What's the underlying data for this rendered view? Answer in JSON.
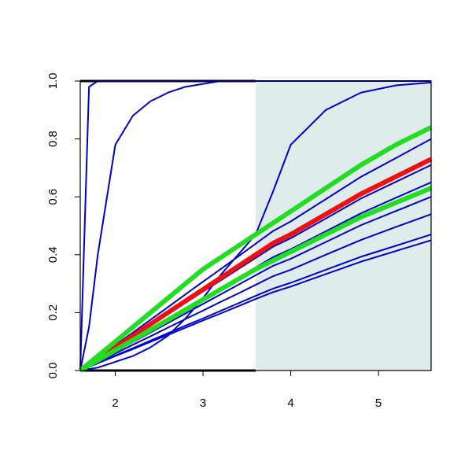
{
  "chart_data": {
    "type": "line",
    "x": [
      1.6,
      1.7,
      1.8,
      2.0,
      2.2,
      2.4,
      2.6,
      2.8,
      3.0,
      3.2,
      3.4,
      3.6,
      3.8,
      4.0,
      4.4,
      4.8,
      5.2,
      5.6
    ],
    "series": [
      {
        "color": "#0000cc",
        "values": [
          0,
          0.98,
          1,
          1,
          1,
          1,
          1,
          1,
          1,
          1,
          1,
          1,
          1,
          1,
          1,
          1,
          1,
          1
        ]
      },
      {
        "color": "#0000cc",
        "values": [
          0,
          0.15,
          0.4,
          0.78,
          0.88,
          0.93,
          0.96,
          0.98,
          0.99,
          1,
          1,
          1,
          1,
          1,
          1,
          1,
          1,
          1
        ]
      },
      {
        "color": "#0000cc",
        "values": [
          0,
          0.005,
          0.01,
          0.03,
          0.05,
          0.08,
          0.12,
          0.18,
          0.25,
          0.33,
          0.4,
          0.47,
          0.62,
          0.78,
          0.9,
          0.96,
          0.985,
          0.995
        ]
      },
      {
        "color": "#0000cc",
        "values": [
          0,
          0.022,
          0.044,
          0.088,
          0.131,
          0.175,
          0.219,
          0.263,
          0.307,
          0.35,
          0.394,
          0.438,
          0.482,
          0.515,
          0.592,
          0.669,
          0.734,
          0.8
        ]
      },
      {
        "color": "#0000cc",
        "values": [
          0,
          0.019,
          0.039,
          0.078,
          0.116,
          0.155,
          0.195,
          0.234,
          0.273,
          0.311,
          0.35,
          0.389,
          0.428,
          0.457,
          0.525,
          0.594,
          0.652,
          0.71
        ]
      },
      {
        "color": "#0000cc",
        "values": [
          0,
          0.018,
          0.036,
          0.072,
          0.107,
          0.142,
          0.178,
          0.214,
          0.25,
          0.285,
          0.32,
          0.356,
          0.392,
          0.419,
          0.481,
          0.543,
          0.597,
          0.65
        ]
      },
      {
        "color": "#0000cc",
        "values": [
          0,
          0.016,
          0.033,
          0.066,
          0.098,
          0.131,
          0.164,
          0.197,
          0.23,
          0.263,
          0.296,
          0.329,
          0.362,
          0.386,
          0.444,
          0.502,
          0.551,
          0.6
        ]
      },
      {
        "color": "#0000cc",
        "values": [
          0,
          0.015,
          0.03,
          0.059,
          0.089,
          0.118,
          0.148,
          0.178,
          0.207,
          0.237,
          0.266,
          0.296,
          0.326,
          0.348,
          0.4,
          0.451,
          0.496,
          0.54
        ]
      },
      {
        "color": "#0000cc",
        "values": [
          0,
          0.013,
          0.026,
          0.052,
          0.077,
          0.103,
          0.129,
          0.155,
          0.18,
          0.206,
          0.232,
          0.258,
          0.283,
          0.303,
          0.348,
          0.393,
          0.431,
          0.47
        ]
      },
      {
        "color": "#0000cc",
        "values": [
          0,
          0.012,
          0.025,
          0.05,
          0.074,
          0.099,
          0.123,
          0.148,
          0.173,
          0.197,
          0.222,
          0.247,
          0.271,
          0.29,
          0.333,
          0.376,
          0.413,
          0.45
        ]
      },
      {
        "color": "#ee1111",
        "values": [
          0,
          0.02,
          0.04,
          0.08,
          0.12,
          0.16,
          0.2,
          0.24,
          0.28,
          0.32,
          0.36,
          0.4,
          0.44,
          0.47,
          0.54,
          0.61,
          0.67,
          0.73
        ]
      },
      {
        "color": "#22dd22",
        "values": [
          0,
          0.025,
          0.05,
          0.1,
          0.15,
          0.2,
          0.25,
          0.3,
          0.35,
          0.39,
          0.43,
          0.47,
          0.51,
          0.55,
          0.63,
          0.71,
          0.78,
          0.84
        ]
      },
      {
        "color": "#22dd22",
        "values": [
          0,
          0.018,
          0.035,
          0.07,
          0.105,
          0.14,
          0.175,
          0.21,
          0.245,
          0.28,
          0.315,
          0.35,
          0.38,
          0.41,
          0.47,
          0.53,
          0.58,
          0.63
        ]
      }
    ],
    "xlim": [
      1.6,
      5.6
    ],
    "ylim": [
      0,
      1
    ],
    "xticks": [
      2,
      3,
      4,
      5
    ],
    "yticks": [
      {
        "value": 0,
        "label": "0.0"
      },
      {
        "value": 0.2,
        "label": "0.2"
      },
      {
        "value": 0.4,
        "label": "0.4"
      },
      {
        "value": 0.6,
        "label": "0.6"
      },
      {
        "value": 0.8,
        "label": "0.8"
      },
      {
        "value": 1,
        "label": "1.0"
      }
    ],
    "highlight": {
      "x": [
        3.6,
        5.6
      ],
      "color": "#e0ecec"
    }
  }
}
